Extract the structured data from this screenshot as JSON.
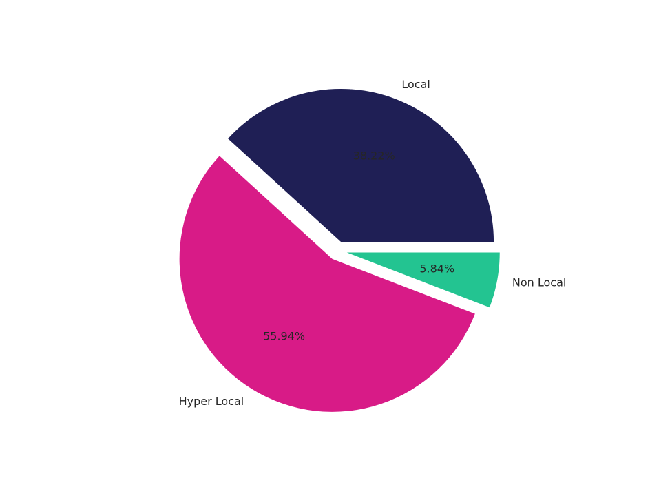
{
  "chart_data": {
    "type": "pie",
    "categories": [
      "Local",
      "Hyper Local",
      "Non Local"
    ],
    "values": [
      38.22,
      55.94,
      5.84
    ],
    "value_labels": [
      "38.22%",
      "55.94%",
      "5.84%"
    ],
    "colors": [
      "#1f1f55",
      "#d81b87",
      "#23c491"
    ]
  }
}
